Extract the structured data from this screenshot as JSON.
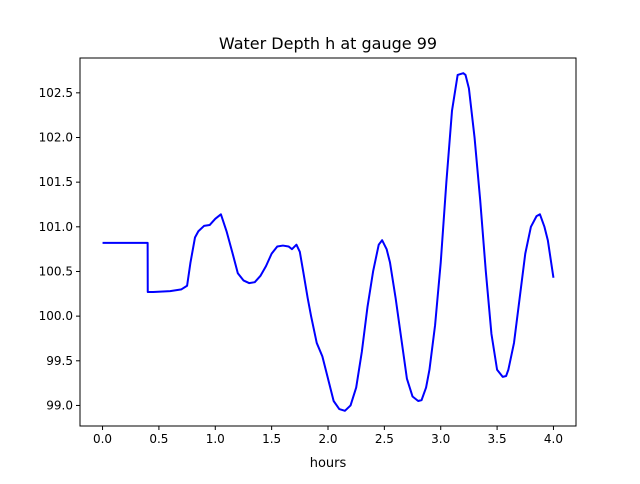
{
  "chart_data": {
    "type": "line",
    "title": "Water Depth h at gauge 99",
    "xlabel": "hours",
    "ylabel": "",
    "xlim": [
      -0.2,
      4.2
    ],
    "ylim": [
      98.77,
      102.89
    ],
    "xticks": [
      0.0,
      0.5,
      1.0,
      1.5,
      2.0,
      2.5,
      3.0,
      3.5,
      4.0
    ],
    "xtick_labels": [
      "0.0",
      "0.5",
      "1.0",
      "1.5",
      "2.0",
      "2.5",
      "3.0",
      "3.5",
      "4.0"
    ],
    "yticks": [
      99.0,
      99.5,
      100.0,
      100.5,
      101.0,
      101.5,
      102.0,
      102.5
    ],
    "ytick_labels": [
      "99.0",
      "99.5",
      "100.0",
      "100.5",
      "101.0",
      "101.5",
      "102.0",
      "102.5"
    ],
    "grid": false,
    "series": [
      {
        "color": "#0000ff",
        "x": [
          0.0,
          0.2,
          0.4,
          0.401,
          0.45,
          0.6,
          0.7,
          0.75,
          0.78,
          0.82,
          0.85,
          0.9,
          0.95,
          1.0,
          1.05,
          1.1,
          1.15,
          1.2,
          1.25,
          1.3,
          1.35,
          1.4,
          1.45,
          1.5,
          1.55,
          1.6,
          1.65,
          1.68,
          1.72,
          1.75,
          1.78,
          1.82,
          1.85,
          1.9,
          1.95,
          2.0,
          2.05,
          2.1,
          2.15,
          2.2,
          2.25,
          2.3,
          2.35,
          2.4,
          2.45,
          2.48,
          2.52,
          2.55,
          2.6,
          2.65,
          2.7,
          2.75,
          2.8,
          2.83,
          2.87,
          2.9,
          2.95,
          3.0,
          3.05,
          3.1,
          3.15,
          3.2,
          3.22,
          3.25,
          3.3,
          3.35,
          3.4,
          3.45,
          3.5,
          3.55,
          3.58,
          3.6,
          3.65,
          3.7,
          3.75,
          3.8,
          3.85,
          3.88,
          3.92,
          3.95,
          4.0
        ],
        "y": [
          100.82,
          100.82,
          100.82,
          100.27,
          100.27,
          100.28,
          100.3,
          100.34,
          100.6,
          100.88,
          100.95,
          101.01,
          101.02,
          101.09,
          101.14,
          100.95,
          100.72,
          100.48,
          100.4,
          100.37,
          100.38,
          100.45,
          100.56,
          100.7,
          100.78,
          100.79,
          100.78,
          100.75,
          100.8,
          100.72,
          100.5,
          100.2,
          100.0,
          99.7,
          99.55,
          99.3,
          99.05,
          98.96,
          98.94,
          99.0,
          99.2,
          99.6,
          100.1,
          100.5,
          100.8,
          100.85,
          100.75,
          100.6,
          100.2,
          99.75,
          99.3,
          99.1,
          99.05,
          99.06,
          99.2,
          99.4,
          99.9,
          100.6,
          101.5,
          102.3,
          102.7,
          102.72,
          102.7,
          102.55,
          102.0,
          101.3,
          100.5,
          99.8,
          99.4,
          99.32,
          99.33,
          99.4,
          99.7,
          100.2,
          100.7,
          101.0,
          101.12,
          101.14,
          101.0,
          100.85,
          100.43
        ]
      }
    ]
  }
}
